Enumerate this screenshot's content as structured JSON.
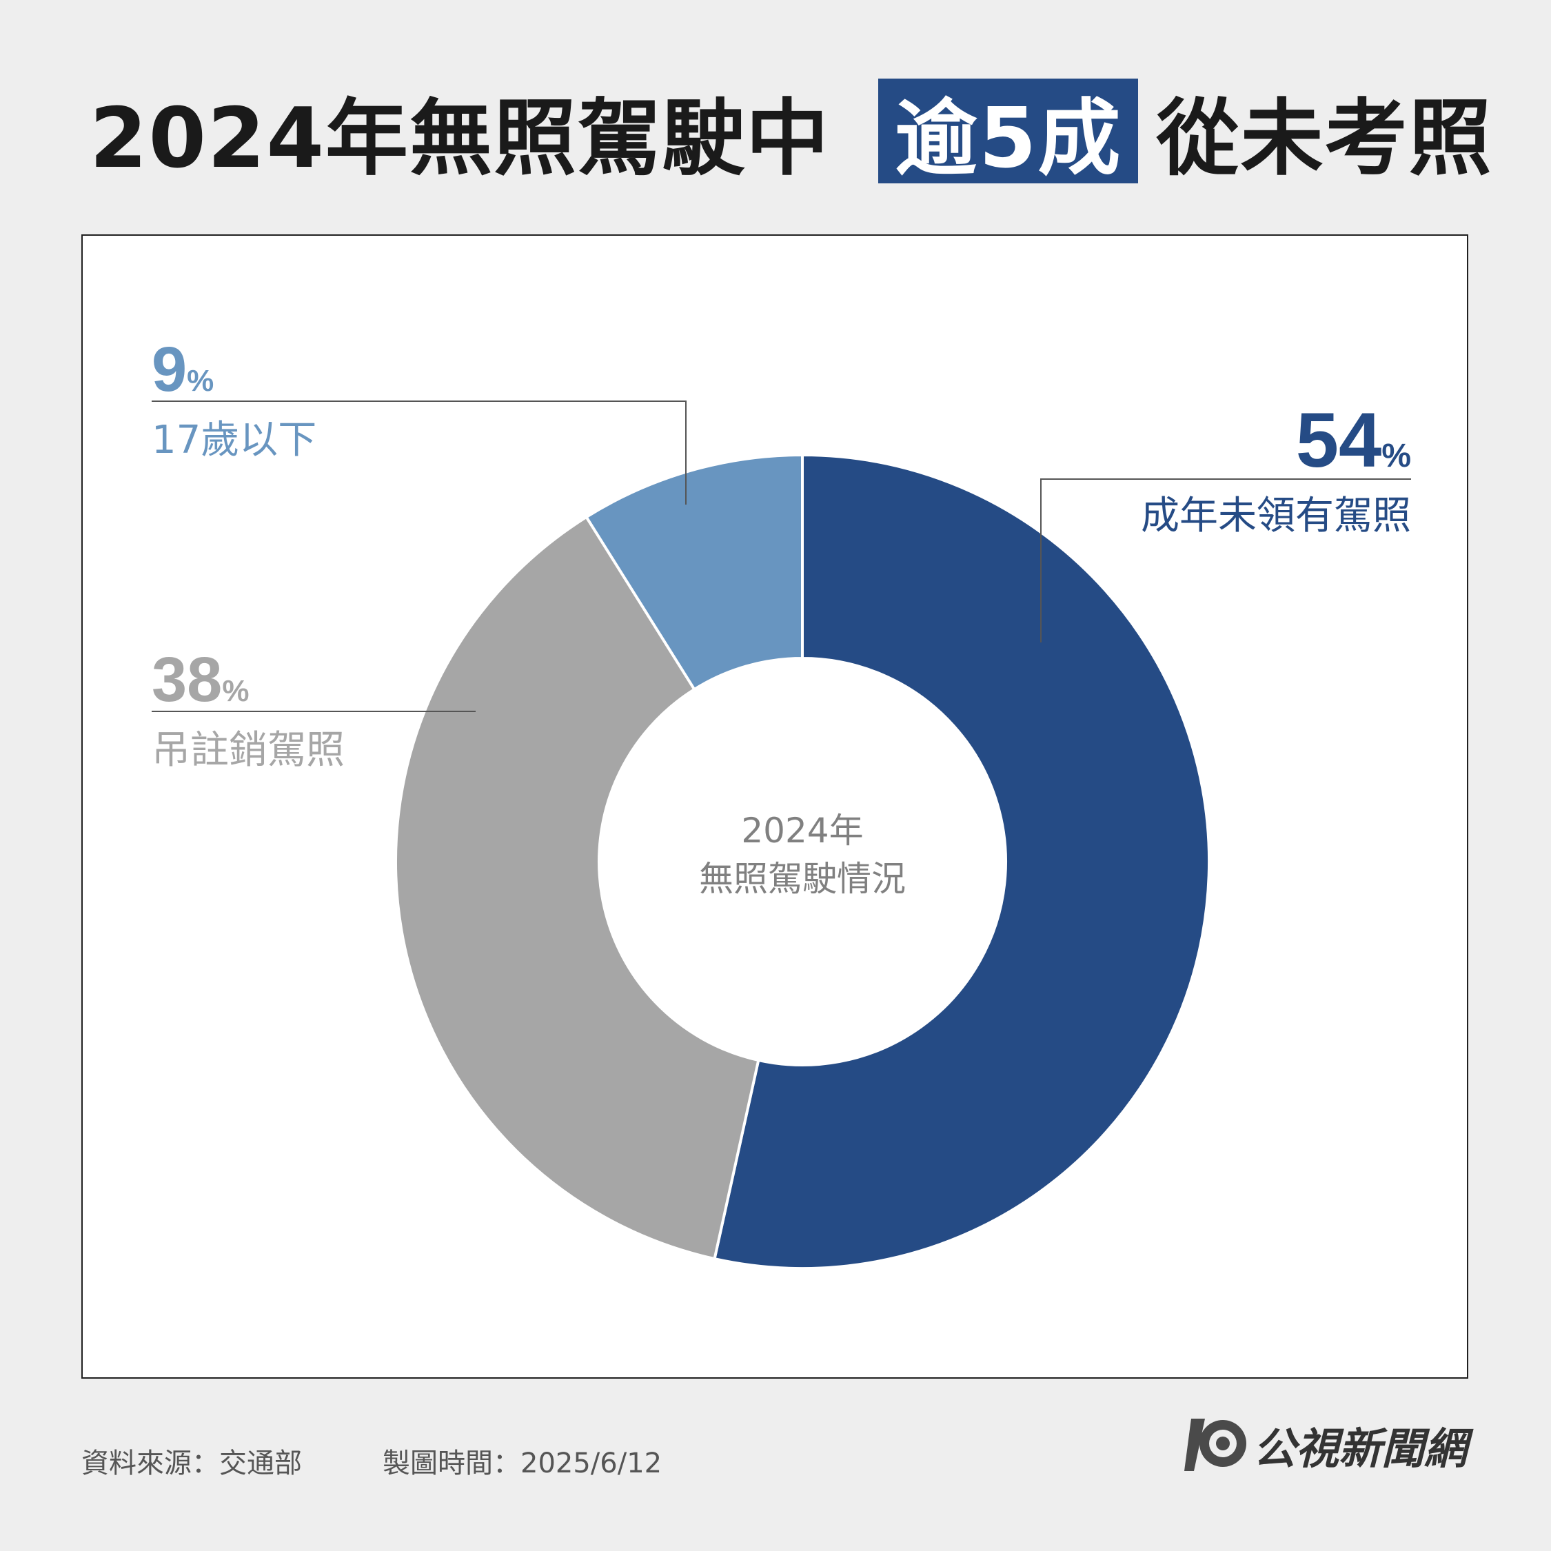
{
  "header": {
    "title_part1": "2024年無照駕駛中",
    "title_highlight": "逾5成",
    "title_part2": "從未考照"
  },
  "chart_data": {
    "type": "pie",
    "donut": true,
    "center_label_line1": "2024年",
    "center_label_line2": "無照駕駛情況",
    "slices": [
      {
        "label": "成年未領有駕照",
        "value": 54,
        "display": "54",
        "unit": "%",
        "color": "#254b85"
      },
      {
        "label": "吊註銷駕照",
        "value": 38,
        "display": "38",
        "unit": "%",
        "color": "#a6a6a6"
      },
      {
        "label": "17歲以下",
        "value": 9,
        "display": "9",
        "unit": "%",
        "color": "#6895c0"
      }
    ]
  },
  "footer": {
    "source": "資料來源：交通部",
    "made": "製圖時間：2025/6/12",
    "brand": "公視新聞網"
  }
}
